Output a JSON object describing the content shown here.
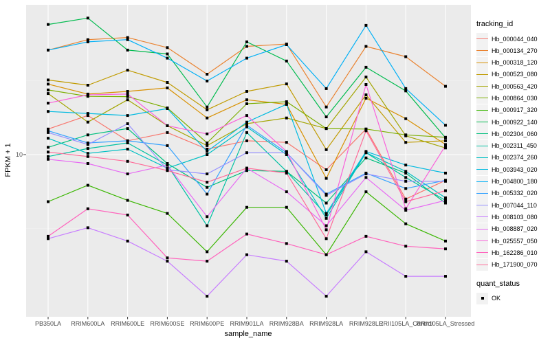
{
  "figure": {
    "background": "#FFFFFF",
    "panel_background": "#EBEBEB",
    "gridline_color": "#FFFFFF",
    "point_color": "#000000",
    "axis_text_color": "#4D4D4D",
    "axis_title_color": "#000000"
  },
  "legend": {
    "tracking_title": "tracking_id",
    "quant_title": "quant_status",
    "quant_items": [
      "OK"
    ]
  },
  "chart_data": {
    "type": "line",
    "title": "",
    "xlabel": "sample_name",
    "ylabel": "FPKM + 1",
    "y_scale": "log10",
    "y_tick_labels": [
      "10"
    ],
    "y_tick_values": [
      10
    ],
    "ylim_approx": [
      1.0,
      95
    ],
    "grid": "white major gridlines on grey panel; vertical line per category; horizontal at 10",
    "legend_position": "right",
    "point_shape": "filled-square",
    "point_legend": {
      "title": "quant_status",
      "items": [
        "OK"
      ]
    },
    "categories": [
      "PB350LA",
      "RRIM600LA",
      "RRIM600LE",
      "RRIM600SE",
      "RRIM600PE",
      "RRIM901LA",
      "RRIM928BA",
      "RRIM928LA",
      "RRIM928LE",
      "RRII105LA_Control",
      "RRII105LA_Stressed"
    ],
    "series": [
      {
        "name": "Hb_000044_040",
        "color": "#F8766D",
        "values": [
          14.9,
          18.4,
          12.4,
          14.1,
          10.9,
          12.4,
          12.1,
          7.9,
          14.9,
          5.0,
          6.7
        ]
      },
      {
        "name": "Hb_000134_270",
        "color": "#EA8331",
        "values": [
          51,
          60,
          62,
          53,
          35,
          54,
          56,
          21,
          54,
          46,
          29
        ]
      },
      {
        "name": "Hb_000318_120",
        "color": "#D89000",
        "values": [
          30,
          25.7,
          26.8,
          28.3,
          17.7,
          23.5,
          21.9,
          6.9,
          24.1,
          17.5,
          11.7
        ]
      },
      {
        "name": "Hb_000523_080",
        "color": "#C09B00",
        "values": [
          32,
          29.5,
          37.3,
          30.8,
          20.1,
          26.8,
          30.1,
          10.8,
          25.4,
          12.1,
          12.4
        ]
      },
      {
        "name": "Hb_000563_420",
        "color": "#A3A500",
        "values": [
          25.9,
          16.6,
          23.5,
          15.7,
          11.5,
          16.2,
          17.7,
          15.0,
          33.5,
          13.4,
          11.1
        ]
      },
      {
        "name": "Hb_000864_030",
        "color": "#7CAE00",
        "values": [
          27.4,
          24.8,
          24.7,
          20.7,
          12.0,
          22.1,
          22.8,
          15.0,
          14.9,
          13.6,
          13.1
        ]
      },
      {
        "name": "Hb_000917_320",
        "color": "#39B600",
        "values": [
          4.8,
          6.2,
          4.9,
          4.0,
          2.2,
          4.4,
          4.4,
          2.1,
          5.6,
          3.4,
          2.6
        ]
      },
      {
        "name": "Hb_000922_140",
        "color": "#00BB4E",
        "values": [
          76,
          84,
          51,
          48,
          21,
          58,
          43,
          18,
          39,
          27,
          13
        ]
      },
      {
        "name": "Hb_002304_060",
        "color": "#00BF7D",
        "values": [
          11.2,
          13.6,
          15.0,
          8.7,
          6.0,
          7.8,
          7.7,
          4.7,
          9.5,
          7.5,
          4.7
        ]
      },
      {
        "name": "Hb_002311_450",
        "color": "#00C1A3",
        "values": [
          9.7,
          11,
          12,
          8.5,
          3.3,
          14.1,
          7.7,
          3.9,
          10.3,
          7.0,
          4.9
        ]
      },
      {
        "name": "Hb_002374_260",
        "color": "#00C0C4",
        "values": [
          12.9,
          10.2,
          10.9,
          8.1,
          10.0,
          15.4,
          10.0,
          3.7,
          10.3,
          7.7,
          5.1
        ]
      },
      {
        "name": "Hb_003943_020",
        "color": "#00BAE0",
        "values": [
          19.6,
          19,
          18.4,
          20.5,
          10.5,
          16.6,
          21.9,
          4.0,
          10.5,
          8.5,
          7.5
        ]
      },
      {
        "name": "Hb_004800_180",
        "color": "#00B0F6",
        "values": [
          51,
          58,
          60,
          45,
          31.5,
          45,
          55.5,
          28,
          75,
          28,
          15.8
        ]
      },
      {
        "name": "Hb_005332_020",
        "color": "#35A2FF",
        "values": [
          14.5,
          12,
          12.4,
          11.5,
          5.4,
          15.8,
          10.3,
          5.4,
          7.5,
          5.9,
          6.7
        ]
      },
      {
        "name": "Hb_007044_110",
        "color": "#9590FF",
        "values": [
          14.1,
          11.7,
          16.2,
          7.9,
          7.4,
          10.3,
          10.3,
          5.3,
          7.4,
          6.6,
          6.6
        ]
      },
      {
        "name": "Hb_008103_080",
        "color": "#C77CFF",
        "values": [
          2.7,
          3.2,
          2.6,
          1.9,
          1.1,
          2.1,
          1.9,
          1.1,
          2.2,
          1.5,
          1.5
        ]
      },
      {
        "name": "Hb_008887_020",
        "color": "#E76BF3",
        "values": [
          9.3,
          8.7,
          7.4,
          8.5,
          3.8,
          8.1,
          5.6,
          3.3,
          7.0,
          4.2,
          4.9
        ]
      },
      {
        "name": "Hb_025557_050",
        "color": "#FA62DB",
        "values": [
          22.3,
          25.4,
          25.7,
          15.7,
          13.8,
          18.4,
          10.5,
          3.1,
          29.8,
          4.3,
          11.5
        ]
      },
      {
        "name": "Hb_162286_010",
        "color": "#FF62BC",
        "values": [
          2.8,
          4.3,
          3.9,
          2.0,
          1.9,
          2.9,
          2.5,
          2.1,
          2.8,
          2.4,
          2.3
        ]
      },
      {
        "name": "Hb_171900_070",
        "color": "#FF6A98",
        "values": [
          10.4,
          9.7,
          9.0,
          7.8,
          6.5,
          8.1,
          7.5,
          2.7,
          14.5,
          4.8,
          5.7
        ]
      }
    ]
  }
}
